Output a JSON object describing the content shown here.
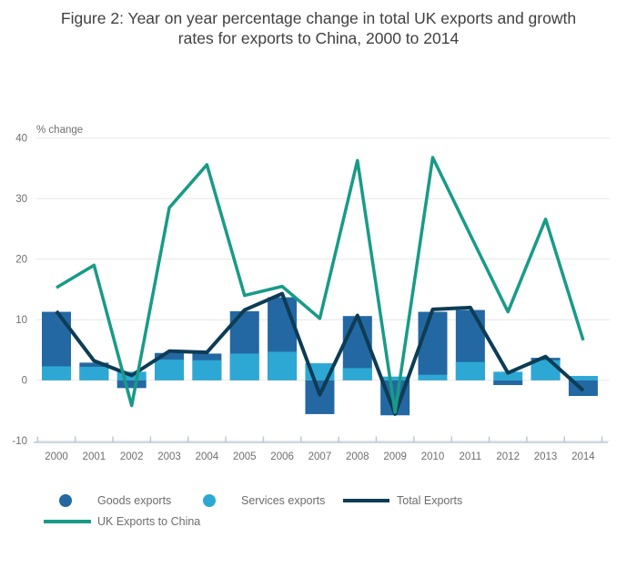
{
  "title": {
    "line1": "Figure 2: Year on year percentage change in total UK exports and growth",
    "line2": "rates for exports to China, 2000 to 2014"
  },
  "chart_data": {
    "type": "combo-bar-line",
    "title": "Figure 2: Year on year percentage change in total UK exports and growth rates for exports to China, 2000 to 2014",
    "y_axis_label": "% change",
    "xlabel": "",
    "ylim": [
      -10,
      40
    ],
    "yticks": [
      40,
      30,
      20,
      10,
      0,
      -10
    ],
    "grid": true,
    "legend_position": "bottom",
    "bar_mode": "overlay-from-zero",
    "categories": [
      "2000",
      "2001",
      "2002",
      "2003",
      "2004",
      "2005",
      "2006",
      "2007",
      "2008",
      "2009",
      "2010",
      "2011",
      "2012",
      "2013",
      "2014"
    ],
    "series": [
      {
        "name": "Goods exports",
        "type": "bar",
        "color": "#2368a2",
        "values": [
          11.3,
          2.9,
          -1.3,
          4.5,
          4.4,
          11.4,
          13.7,
          -5.6,
          10.6,
          -5.8,
          11.3,
          11.6,
          -0.8,
          3.7,
          -2.6
        ]
      },
      {
        "name": "Services exports",
        "type": "bar",
        "color": "#2da8d4",
        "values": [
          2.3,
          2.2,
          1.4,
          3.4,
          3.3,
          4.4,
          4.7,
          2.8,
          2.0,
          0.6,
          0.9,
          3.0,
          1.4,
          3.3,
          0.7
        ]
      },
      {
        "name": "Total Exports",
        "type": "line",
        "color": "#0d3c55",
        "values": [
          11.4,
          3.2,
          0.8,
          4.8,
          4.6,
          11.6,
          14.3,
          -2.4,
          10.7,
          -5.6,
          11.7,
          12.0,
          1.2,
          3.9,
          -1.7
        ]
      },
      {
        "name": "UK Exports to China",
        "type": "line",
        "color": "#189b86",
        "values": [
          15.3,
          19.0,
          -4.2,
          28.5,
          35.6,
          14.0,
          15.5,
          10.2,
          36.3,
          -5.3,
          36.8,
          24.0,
          11.3,
          26.6,
          6.6
        ]
      }
    ]
  },
  "legend": {
    "items": [
      {
        "label": "Goods exports",
        "marker": "circle",
        "color": "#2368a2"
      },
      {
        "label": "Services exports",
        "marker": "circle",
        "color": "#2da8d4"
      },
      {
        "label": "Total Exports",
        "marker": "line",
        "color": "#0d3c55"
      },
      {
        "label": "UK Exports to China",
        "marker": "line",
        "color": "#189b86"
      }
    ]
  },
  "colors": {
    "gridline": "#e7e7e7",
    "axis_line": "#b7cbd8",
    "axis_text": "#6f6f6f",
    "title_text": "#414042",
    "legend_text": "#6d6d6d",
    "background": "#ffffff"
  }
}
